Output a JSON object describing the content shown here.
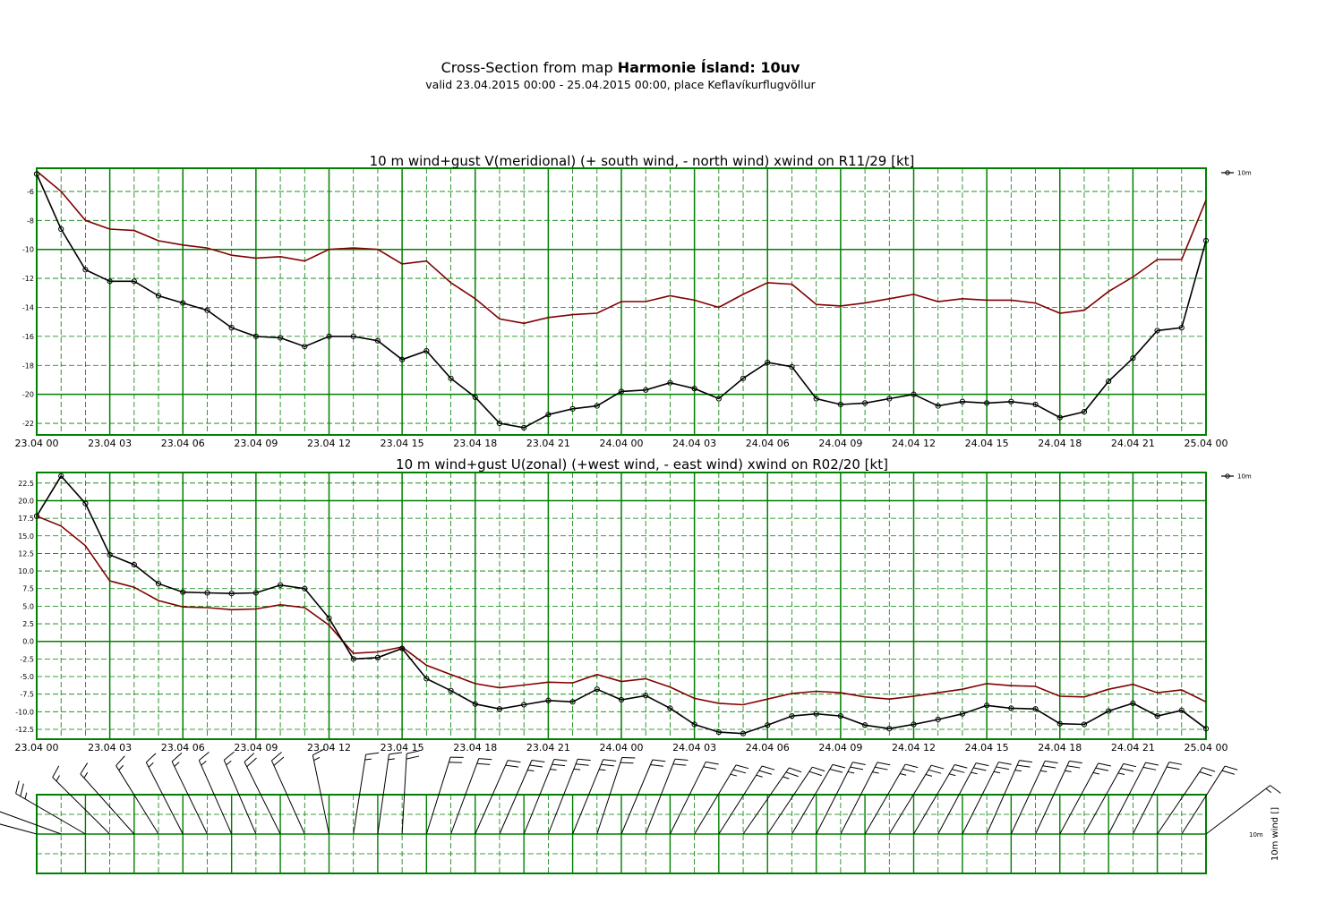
{
  "header": {
    "title_prefix": "Cross-Section from map ",
    "title_bold": "Harmonie Ísland: 10uv",
    "subtitle": "valid 23.04.2015 00:00 - 25.04.2015 00:00, place Keflavíkurflugvöllur"
  },
  "colors": {
    "grid": "#008000",
    "series_10m": "#000000",
    "series_gust": "#800000"
  },
  "chart_data": [
    {
      "type": "line",
      "title": "10 m wind+gust V(meridional) (+ south wind, - north wind) xwind on R11/29 [kt]",
      "x_tick_labels": [
        "23.04 00",
        "23.04 03",
        "23.04 06",
        "23.04 09",
        "23.04 12",
        "23.04 15",
        "23.04 18",
        "23.04 21",
        "24.04 00",
        "24.04 03",
        "24.04 06",
        "24.04 09",
        "24.04 12",
        "24.04 15",
        "24.04 18",
        "24.04 21",
        "25.04 00"
      ],
      "x_hours": [
        0,
        1,
        2,
        3,
        4,
        5,
        6,
        7,
        8,
        9,
        10,
        11,
        12,
        13,
        14,
        15,
        16,
        17,
        18,
        19,
        20,
        21,
        22,
        23,
        24,
        25,
        26,
        27,
        28,
        29,
        30,
        31,
        32,
        33,
        34,
        35,
        36,
        37,
        38,
        39,
        40,
        41,
        42,
        43,
        44,
        45,
        46,
        47,
        48
      ],
      "ylim": [
        -22.8,
        -4.4
      ],
      "y_ticks": [
        -22,
        -20,
        -18,
        -16,
        -14,
        -12,
        -10,
        -8,
        -6
      ],
      "y_tick_labels": [
        "-22",
        "-20",
        "-18",
        "-16",
        "-14",
        "-12",
        "-10",
        "-8",
        "-6"
      ],
      "legend": "10m",
      "series": [
        {
          "name": "10m",
          "marker": "circle",
          "values": [
            -4.8,
            -8.6,
            -11.4,
            -12.2,
            -12.2,
            -13.2,
            -13.7,
            -14.2,
            -15.4,
            -16.0,
            -16.1,
            -16.7,
            -16.0,
            -16.0,
            -16.3,
            -17.6,
            -17.0,
            -18.9,
            -20.2,
            -22.0,
            -22.3,
            -21.4,
            -21.0,
            -20.8,
            -19.8,
            -19.7,
            -19.2,
            -19.6,
            -20.3,
            -18.9,
            -17.8,
            -18.1,
            -20.3,
            -20.7,
            -20.6,
            -20.3,
            -20.0,
            -20.8,
            -20.5,
            -20.6,
            -20.5,
            -20.7,
            -21.6,
            -21.2,
            -19.1,
            -17.5,
            -15.6,
            -15.4,
            -9.4
          ]
        },
        {
          "name": "",
          "marker": "none",
          "values": [
            -4.6,
            -6.0,
            -8.0,
            -8.6,
            -8.7,
            -9.4,
            -9.7,
            -9.9,
            -10.4,
            -10.6,
            -10.5,
            -10.8,
            -10.0,
            -9.9,
            -10.0,
            -11.0,
            -10.8,
            -12.3,
            -13.4,
            -14.8,
            -15.1,
            -14.7,
            -14.5,
            -14.4,
            -13.6,
            -13.6,
            -13.2,
            -13.5,
            -14.0,
            -13.1,
            -12.3,
            -12.4,
            -13.8,
            -13.9,
            -13.7,
            -13.4,
            -13.1,
            -13.6,
            -13.4,
            -13.5,
            -13.5,
            -13.7,
            -14.4,
            -14.2,
            -12.9,
            -11.9,
            -10.7,
            -10.7,
            -6.6
          ]
        }
      ]
    },
    {
      "type": "line",
      "title": "10 m wind+gust U(zonal) (+west wind, - east wind) xwind on R02/20 [kt]",
      "x_tick_labels": [
        "23.04 00",
        "23.04 03",
        "23.04 06",
        "23.04 09",
        "23.04 12",
        "23.04 15",
        "23.04 18",
        "23.04 21",
        "24.04 00",
        "24.04 03",
        "24.04 06",
        "24.04 09",
        "24.04 12",
        "24.04 15",
        "24.04 18",
        "24.04 21",
        "25.04 00"
      ],
      "ylim": [
        -13.9,
        24.0
      ],
      "y_ticks": [
        -12.5,
        -10.0,
        -7.5,
        -5.0,
        -2.5,
        0.0,
        2.5,
        5.0,
        7.5,
        10.0,
        12.5,
        15.0,
        17.5,
        20.0,
        22.5
      ],
      "y_tick_labels": [
        "-12.5",
        "-10.0",
        "-7.5",
        "-5.0",
        "-2.5",
        "0.0",
        "2.5",
        "5.0",
        "7.5",
        "10.0",
        "12.5",
        "15.0",
        "17.5",
        "20.0",
        "22.5"
      ],
      "legend": "10m",
      "series": [
        {
          "name": "10m",
          "marker": "circle",
          "values": [
            17.8,
            23.5,
            19.6,
            12.3,
            10.9,
            8.2,
            7.0,
            6.9,
            6.8,
            6.9,
            8.0,
            7.5,
            3.3,
            -2.5,
            -2.3,
            -1.0,
            -5.3,
            -7.0,
            -8.9,
            -9.6,
            -9.0,
            -8.4,
            -8.6,
            -6.8,
            -8.3,
            -7.7,
            -9.5,
            -11.8,
            -12.9,
            -13.1,
            -11.9,
            -10.6,
            -10.3,
            -10.6,
            -11.9,
            -12.4,
            -11.8,
            -11.1,
            -10.3,
            -9.1,
            -9.5,
            -9.6,
            -11.7,
            -11.8,
            -9.9,
            -8.8,
            -10.6,
            -9.8,
            -12.4
          ]
        },
        {
          "name": "",
          "marker": "none",
          "values": [
            17.8,
            16.4,
            13.6,
            8.6,
            7.7,
            5.8,
            4.9,
            4.8,
            4.5,
            4.6,
            5.2,
            4.8,
            2.3,
            -1.7,
            -1.5,
            -0.8,
            -3.4,
            -4.7,
            -6.0,
            -6.6,
            -6.2,
            -5.8,
            -5.9,
            -4.7,
            -5.7,
            -5.3,
            -6.5,
            -8.1,
            -8.8,
            -9.0,
            -8.2,
            -7.4,
            -7.1,
            -7.3,
            -7.9,
            -8.2,
            -7.8,
            -7.3,
            -6.8,
            -6.0,
            -6.3,
            -6.4,
            -7.8,
            -7.9,
            -6.8,
            -6.1,
            -7.3,
            -6.9,
            -8.6
          ]
        }
      ]
    },
    {
      "type": "barbs",
      "ylabel": "10m wind []",
      "legend": "10m",
      "series": [
        {
          "name": "10m",
          "u_kt": [
            17.8,
            23.5,
            19.6,
            12.3,
            10.9,
            8.2,
            7.0,
            6.9,
            6.8,
            6.9,
            8.0,
            7.5,
            3.3,
            -2.5,
            -2.3,
            -1.0,
            -5.3,
            -7.0,
            -8.9,
            -9.6,
            -9.0,
            -8.4,
            -8.6,
            -6.8,
            -8.3,
            -7.7,
            -9.5,
            -11.8,
            -12.9,
            -13.1,
            -11.9,
            -10.6,
            -10.3,
            -10.6,
            -11.9,
            -12.4,
            -11.8,
            -11.1,
            -10.3,
            -9.1,
            -9.5,
            -9.6,
            -11.7,
            -11.8,
            -9.9,
            -8.8,
            -10.6,
            -9.8,
            -12.4
          ],
          "v_kt": [
            -4.8,
            -8.6,
            -11.4,
            -12.2,
            -12.2,
            -13.2,
            -13.7,
            -14.2,
            -15.4,
            -16.0,
            -16.1,
            -16.7,
            -16.0,
            -16.0,
            -16.3,
            -17.6,
            -17.0,
            -18.9,
            -20.2,
            -22.0,
            -22.3,
            -21.4,
            -21.0,
            -20.8,
            -19.8,
            -19.7,
            -19.2,
            -19.6,
            -20.3,
            -18.9,
            -17.8,
            -18.1,
            -20.3,
            -20.7,
            -20.6,
            -20.3,
            -20.0,
            -20.8,
            -20.5,
            -20.6,
            -20.5,
            -20.7,
            -21.6,
            -21.2,
            -19.1,
            -17.5,
            -15.6,
            -15.4,
            -9.4
          ]
        }
      ]
    }
  ]
}
